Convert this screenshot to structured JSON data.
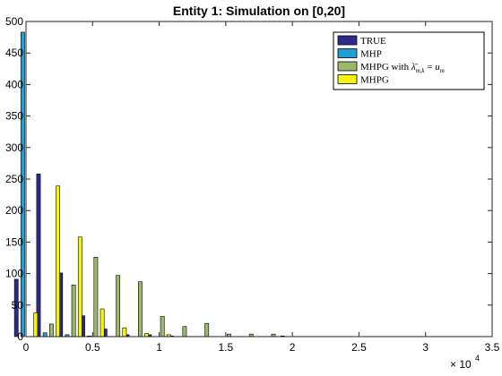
{
  "chart_data": {
    "type": "bar",
    "title": "Entity 1: Simulation on [0,20]",
    "xlabel": "",
    "ylabel": "",
    "xlim": [
      0,
      35000
    ],
    "ylim": [
      0,
      500
    ],
    "x_ticks": [
      0,
      5000,
      10000,
      15000,
      20000,
      25000,
      30000,
      35000
    ],
    "x_tick_labels": [
      "0",
      "0.5",
      "1",
      "1.5",
      "2",
      "2.5",
      "3",
      "3.5"
    ],
    "y_ticks": [
      0,
      50,
      100,
      150,
      200,
      250,
      300,
      350,
      400,
      450,
      500
    ],
    "y_tick_labels": [
      "0",
      "50",
      "100",
      "150",
      "200",
      "250",
      "300",
      "350",
      "400",
      "450",
      "500"
    ],
    "x_multiplier": "× 10",
    "x_multiplier_exponent": "4",
    "grid": false,
    "legend_position": "top-right",
    "series": [
      {
        "name": "TRUE",
        "color": "#2e2a8c",
        "x": [
          0,
          1667,
          3333,
          5000,
          6667,
          8333,
          10000,
          11667,
          13333,
          15000,
          16667,
          18333,
          20000
        ],
        "values": [
          91,
          258,
          101,
          33,
          12,
          3,
          3,
          1,
          0,
          0,
          0,
          0,
          1
        ]
      },
      {
        "name": "MHP",
        "color": "#1e9fd6",
        "x": [
          0,
          1667,
          3333,
          5000,
          6667,
          8333,
          10000,
          11667,
          13333,
          15000,
          16667,
          18333,
          20000
        ],
        "values": [
          483,
          6,
          3,
          1,
          0,
          0,
          0,
          0,
          0,
          0,
          0,
          0,
          0
        ]
      },
      {
        "name": "MHPG with",
        "label_math": "λ̄",
        "label_sub": "m,k",
        "label_rest": "= u",
        "label_rest_sub": "m",
        "color": "#9ab96a",
        "x": [
          0,
          1667,
          3333,
          5000,
          6667,
          8333,
          10000,
          11667,
          13333,
          15000,
          16667,
          18333,
          20000
        ],
        "values": [
          0,
          20,
          82,
          126,
          97,
          87,
          32,
          16,
          21,
          4,
          4,
          4,
          0
        ]
      },
      {
        "name": "MHPG",
        "color": "#f5f50a",
        "x": [
          0,
          1667,
          3333,
          5000,
          6667,
          8333,
          10000,
          11667,
          13333,
          15000,
          16667,
          18333,
          20000
        ],
        "values": [
          38,
          239,
          158,
          44,
          14,
          5,
          3,
          0,
          0,
          0,
          0,
          0,
          0
        ]
      }
    ]
  }
}
